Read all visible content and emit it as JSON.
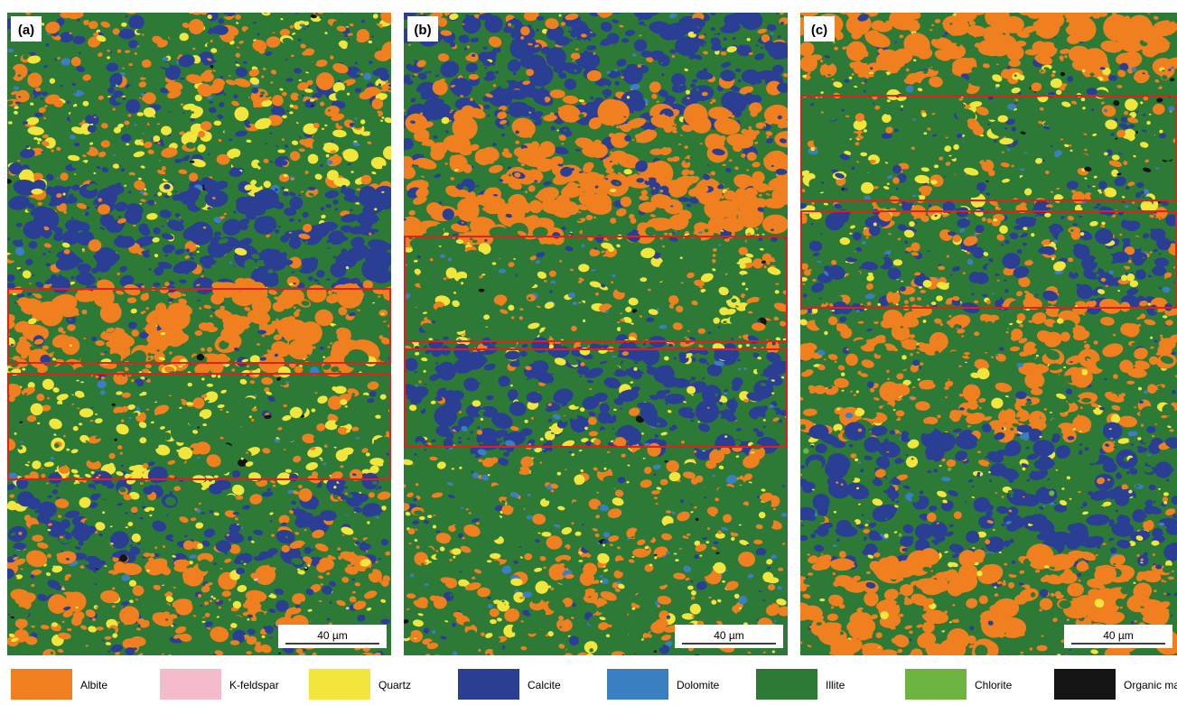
{
  "panels": [
    {
      "label": "(a)",
      "scale_bar": "40 µm"
    },
    {
      "label": "(b)",
      "scale_bar": "40 µm"
    },
    {
      "label": "(c)",
      "scale_bar": "40 µm"
    }
  ],
  "legend": [
    {
      "name": "Albite",
      "color": "#f07f1f"
    },
    {
      "name": "K-feldspar",
      "color": "#f4bccb"
    },
    {
      "name": "Quartz",
      "color": "#f2e53c"
    },
    {
      "name": "Calcite",
      "color": "#2a3f94"
    },
    {
      "name": "Dolomite",
      "color": "#3a7fc1"
    },
    {
      "name": "Illite",
      "color": "#2d7a37"
    },
    {
      "name": "Chlorite",
      "color": "#6db33f"
    },
    {
      "name": "Organic matter",
      "color": "#141414"
    }
  ]
}
